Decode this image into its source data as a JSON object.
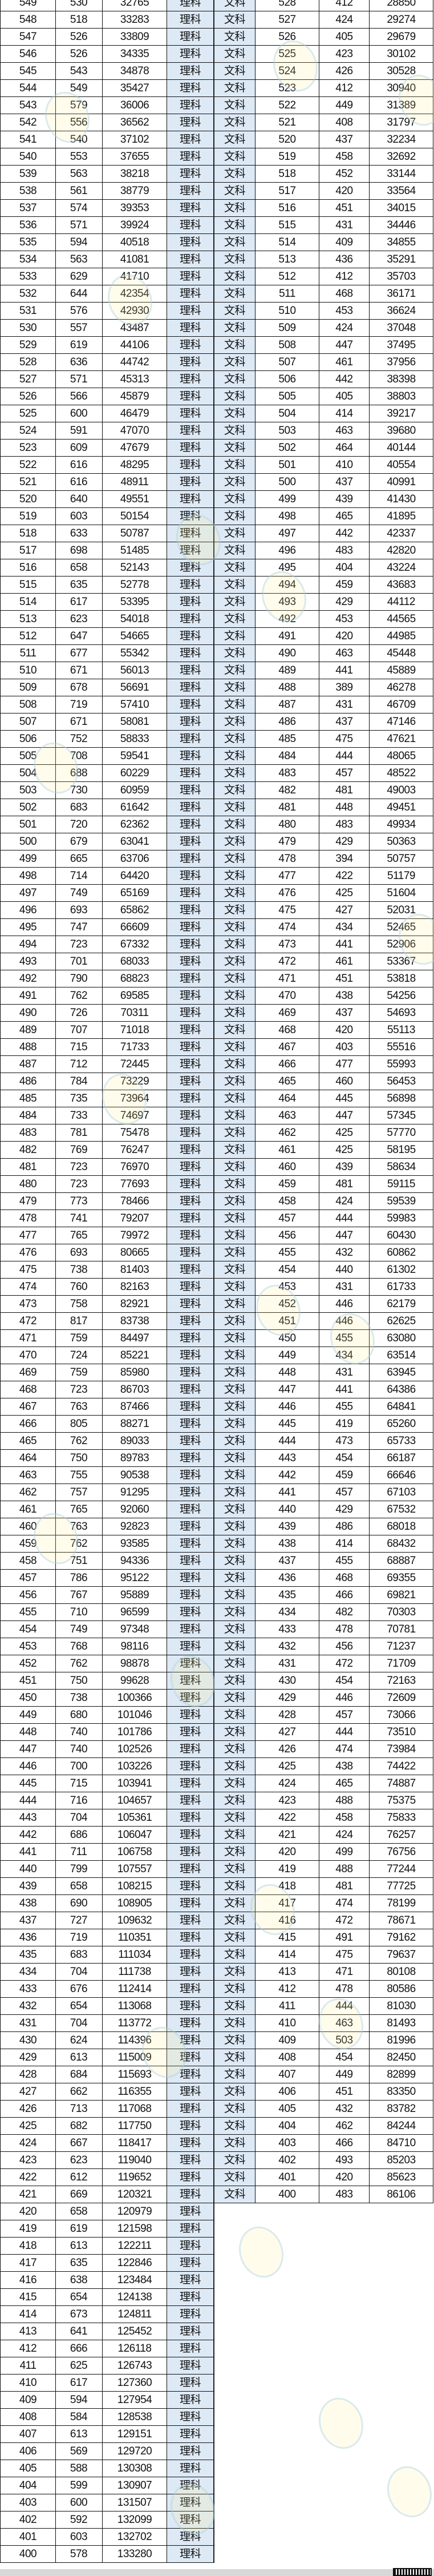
{
  "labels": {
    "science": "理科",
    "liberal_arts": "文科"
  },
  "science_rows": [
    [
      "549",
      "530",
      "32765"
    ],
    [
      "548",
      "518",
      "33283"
    ],
    [
      "547",
      "526",
      "33809"
    ],
    [
      "546",
      "526",
      "34335"
    ],
    [
      "545",
      "543",
      "34878"
    ],
    [
      "544",
      "549",
      "35427"
    ],
    [
      "543",
      "579",
      "36006"
    ],
    [
      "542",
      "556",
      "36562"
    ],
    [
      "541",
      "540",
      "37102"
    ],
    [
      "540",
      "553",
      "37655"
    ],
    [
      "539",
      "563",
      "38218"
    ],
    [
      "538",
      "561",
      "38779"
    ],
    [
      "537",
      "574",
      "39353"
    ],
    [
      "536",
      "571",
      "39924"
    ],
    [
      "535",
      "594",
      "40518"
    ],
    [
      "534",
      "563",
      "41081"
    ],
    [
      "533",
      "629",
      "41710"
    ],
    [
      "532",
      "644",
      "42354"
    ],
    [
      "531",
      "576",
      "42930"
    ],
    [
      "530",
      "557",
      "43487"
    ],
    [
      "529",
      "619",
      "44106"
    ],
    [
      "528",
      "636",
      "44742"
    ],
    [
      "527",
      "571",
      "45313"
    ],
    [
      "526",
      "566",
      "45879"
    ],
    [
      "525",
      "600",
      "46479"
    ],
    [
      "524",
      "591",
      "47070"
    ],
    [
      "523",
      "609",
      "47679"
    ],
    [
      "522",
      "616",
      "48295"
    ],
    [
      "521",
      "616",
      "48911"
    ],
    [
      "520",
      "640",
      "49551"
    ],
    [
      "519",
      "603",
      "50154"
    ],
    [
      "518",
      "633",
      "50787"
    ],
    [
      "517",
      "698",
      "51485"
    ],
    [
      "516",
      "658",
      "52143"
    ],
    [
      "515",
      "635",
      "52778"
    ],
    [
      "514",
      "617",
      "53395"
    ],
    [
      "513",
      "623",
      "54018"
    ],
    [
      "512",
      "647",
      "54665"
    ],
    [
      "511",
      "677",
      "55342"
    ],
    [
      "510",
      "671",
      "56013"
    ],
    [
      "509",
      "678",
      "56691"
    ],
    [
      "508",
      "719",
      "57410"
    ],
    [
      "507",
      "671",
      "58081"
    ],
    [
      "506",
      "752",
      "58833"
    ],
    [
      "505",
      "708",
      "59541"
    ],
    [
      "504",
      "688",
      "60229"
    ],
    [
      "503",
      "730",
      "60959"
    ],
    [
      "502",
      "683",
      "61642"
    ],
    [
      "501",
      "720",
      "62362"
    ],
    [
      "500",
      "679",
      "63041"
    ],
    [
      "499",
      "665",
      "63706"
    ],
    [
      "498",
      "714",
      "64420"
    ],
    [
      "497",
      "749",
      "65169"
    ],
    [
      "496",
      "693",
      "65862"
    ],
    [
      "495",
      "747",
      "66609"
    ],
    [
      "494",
      "723",
      "67332"
    ],
    [
      "493",
      "701",
      "68033"
    ],
    [
      "492",
      "790",
      "68823"
    ],
    [
      "491",
      "762",
      "69585"
    ],
    [
      "490",
      "726",
      "70311"
    ],
    [
      "489",
      "707",
      "71018"
    ],
    [
      "488",
      "715",
      "71733"
    ],
    [
      "487",
      "712",
      "72445"
    ],
    [
      "486",
      "784",
      "73229"
    ],
    [
      "485",
      "735",
      "73964"
    ],
    [
      "484",
      "733",
      "74697"
    ],
    [
      "483",
      "781",
      "75478"
    ],
    [
      "482",
      "769",
      "76247"
    ],
    [
      "481",
      "723",
      "76970"
    ],
    [
      "480",
      "723",
      "77693"
    ],
    [
      "479",
      "773",
      "78466"
    ],
    [
      "478",
      "741",
      "79207"
    ],
    [
      "477",
      "765",
      "79972"
    ],
    [
      "476",
      "693",
      "80665"
    ],
    [
      "475",
      "738",
      "81403"
    ],
    [
      "474",
      "760",
      "82163"
    ],
    [
      "473",
      "758",
      "82921"
    ],
    [
      "472",
      "817",
      "83738"
    ],
    [
      "471",
      "759",
      "84497"
    ],
    [
      "470",
      "724",
      "85221"
    ],
    [
      "469",
      "759",
      "85980"
    ],
    [
      "468",
      "723",
      "86703"
    ],
    [
      "467",
      "763",
      "87466"
    ],
    [
      "466",
      "805",
      "88271"
    ],
    [
      "465",
      "762",
      "89033"
    ],
    [
      "464",
      "750",
      "89783"
    ],
    [
      "463",
      "755",
      "90538"
    ],
    [
      "462",
      "757",
      "91295"
    ],
    [
      "461",
      "765",
      "92060"
    ],
    [
      "460",
      "763",
      "92823"
    ],
    [
      "459",
      "762",
      "93585"
    ],
    [
      "458",
      "751",
      "94336"
    ],
    [
      "457",
      "786",
      "95122"
    ],
    [
      "456",
      "767",
      "95889"
    ],
    [
      "455",
      "710",
      "96599"
    ],
    [
      "454",
      "749",
      "97348"
    ],
    [
      "453",
      "768",
      "98116"
    ],
    [
      "452",
      "762",
      "98878"
    ],
    [
      "451",
      "750",
      "99628"
    ],
    [
      "450",
      "738",
      "100366"
    ],
    [
      "449",
      "680",
      "101046"
    ],
    [
      "448",
      "740",
      "101786"
    ],
    [
      "447",
      "740",
      "102526"
    ],
    [
      "446",
      "700",
      "103226"
    ],
    [
      "445",
      "715",
      "103941"
    ],
    [
      "444",
      "716",
      "104657"
    ],
    [
      "443",
      "704",
      "105361"
    ],
    [
      "442",
      "686",
      "106047"
    ],
    [
      "441",
      "711",
      "106758"
    ],
    [
      "440",
      "799",
      "107557"
    ],
    [
      "439",
      "658",
      "108215"
    ],
    [
      "438",
      "690",
      "108905"
    ],
    [
      "437",
      "727",
      "109632"
    ],
    [
      "436",
      "719",
      "110351"
    ],
    [
      "435",
      "683",
      "111034"
    ],
    [
      "434",
      "704",
      "111738"
    ],
    [
      "433",
      "676",
      "112414"
    ],
    [
      "432",
      "654",
      "113068"
    ],
    [
      "431",
      "704",
      "113772"
    ],
    [
      "430",
      "624",
      "114396"
    ],
    [
      "429",
      "613",
      "115009"
    ],
    [
      "428",
      "684",
      "115693"
    ],
    [
      "427",
      "662",
      "116355"
    ],
    [
      "426",
      "713",
      "117068"
    ],
    [
      "425",
      "682",
      "117750"
    ],
    [
      "424",
      "667",
      "118417"
    ],
    [
      "423",
      "623",
      "119040"
    ],
    [
      "422",
      "612",
      "119652"
    ],
    [
      "421",
      "669",
      "120321"
    ],
    [
      "420",
      "658",
      "120979"
    ],
    [
      "419",
      "619",
      "121598"
    ],
    [
      "418",
      "613",
      "122211"
    ],
    [
      "417",
      "635",
      "122846"
    ],
    [
      "416",
      "638",
      "123484"
    ],
    [
      "415",
      "654",
      "124138"
    ],
    [
      "414",
      "673",
      "124811"
    ],
    [
      "413",
      "641",
      "125452"
    ],
    [
      "412",
      "666",
      "126118"
    ],
    [
      "411",
      "625",
      "126743"
    ],
    [
      "410",
      "617",
      "127360"
    ],
    [
      "409",
      "594",
      "127954"
    ],
    [
      "408",
      "584",
      "128538"
    ],
    [
      "407",
      "613",
      "129151"
    ],
    [
      "406",
      "569",
      "129720"
    ],
    [
      "405",
      "588",
      "130308"
    ],
    [
      "404",
      "599",
      "130907"
    ],
    [
      "403",
      "600",
      "131507"
    ],
    [
      "402",
      "592",
      "132099"
    ],
    [
      "401",
      "603",
      "132702"
    ],
    [
      "400",
      "578",
      "133280"
    ]
  ],
  "liberal_arts_rows": [
    [
      "528",
      "412",
      "28850"
    ],
    [
      "527",
      "424",
      "29274"
    ],
    [
      "526",
      "405",
      "29679"
    ],
    [
      "525",
      "423",
      "30102"
    ],
    [
      "524",
      "426",
      "30528"
    ],
    [
      "523",
      "412",
      "30940"
    ],
    [
      "522",
      "449",
      "31389"
    ],
    [
      "521",
      "408",
      "31797"
    ],
    [
      "520",
      "437",
      "32234"
    ],
    [
      "519",
      "458",
      "32692"
    ],
    [
      "518",
      "452",
      "33144"
    ],
    [
      "517",
      "420",
      "33564"
    ],
    [
      "516",
      "451",
      "34015"
    ],
    [
      "515",
      "431",
      "34446"
    ],
    [
      "514",
      "409",
      "34855"
    ],
    [
      "513",
      "436",
      "35291"
    ],
    [
      "512",
      "412",
      "35703"
    ],
    [
      "511",
      "468",
      "36171"
    ],
    [
      "510",
      "453",
      "36624"
    ],
    [
      "509",
      "424",
      "37048"
    ],
    [
      "508",
      "447",
      "37495"
    ],
    [
      "507",
      "461",
      "37956"
    ],
    [
      "506",
      "442",
      "38398"
    ],
    [
      "505",
      "405",
      "38803"
    ],
    [
      "504",
      "414",
      "39217"
    ],
    [
      "503",
      "463",
      "39680"
    ],
    [
      "502",
      "464",
      "40144"
    ],
    [
      "501",
      "410",
      "40554"
    ],
    [
      "500",
      "437",
      "40991"
    ],
    [
      "499",
      "439",
      "41430"
    ],
    [
      "498",
      "465",
      "41895"
    ],
    [
      "497",
      "442",
      "42337"
    ],
    [
      "496",
      "483",
      "42820"
    ],
    [
      "495",
      "404",
      "43224"
    ],
    [
      "494",
      "459",
      "43683"
    ],
    [
      "493",
      "429",
      "44112"
    ],
    [
      "492",
      "453",
      "44565"
    ],
    [
      "491",
      "420",
      "44985"
    ],
    [
      "490",
      "463",
      "45448"
    ],
    [
      "489",
      "441",
      "45889"
    ],
    [
      "488",
      "389",
      "46278"
    ],
    [
      "487",
      "431",
      "46709"
    ],
    [
      "486",
      "437",
      "47146"
    ],
    [
      "485",
      "475",
      "47621"
    ],
    [
      "484",
      "444",
      "48065"
    ],
    [
      "483",
      "457",
      "48522"
    ],
    [
      "482",
      "481",
      "49003"
    ],
    [
      "481",
      "448",
      "49451"
    ],
    [
      "480",
      "483",
      "49934"
    ],
    [
      "479",
      "429",
      "50363"
    ],
    [
      "478",
      "394",
      "50757"
    ],
    [
      "477",
      "422",
      "51179"
    ],
    [
      "476",
      "425",
      "51604"
    ],
    [
      "475",
      "427",
      "52031"
    ],
    [
      "474",
      "434",
      "52465"
    ],
    [
      "473",
      "441",
      "52906"
    ],
    [
      "472",
      "461",
      "53367"
    ],
    [
      "471",
      "451",
      "53818"
    ],
    [
      "470",
      "438",
      "54256"
    ],
    [
      "469",
      "437",
      "54693"
    ],
    [
      "468",
      "420",
      "55113"
    ],
    [
      "467",
      "403",
      "55516"
    ],
    [
      "466",
      "477",
      "55993"
    ],
    [
      "465",
      "460",
      "56453"
    ],
    [
      "464",
      "445",
      "56898"
    ],
    [
      "463",
      "447",
      "57345"
    ],
    [
      "462",
      "425",
      "57770"
    ],
    [
      "461",
      "425",
      "58195"
    ],
    [
      "460",
      "439",
      "58634"
    ],
    [
      "459",
      "481",
      "59115"
    ],
    [
      "458",
      "424",
      "59539"
    ],
    [
      "457",
      "444",
      "59983"
    ],
    [
      "456",
      "447",
      "60430"
    ],
    [
      "455",
      "432",
      "60862"
    ],
    [
      "454",
      "440",
      "61302"
    ],
    [
      "453",
      "431",
      "61733"
    ],
    [
      "452",
      "446",
      "62179"
    ],
    [
      "451",
      "446",
      "62625"
    ],
    [
      "450",
      "455",
      "63080"
    ],
    [
      "449",
      "434",
      "63514"
    ],
    [
      "448",
      "431",
      "63945"
    ],
    [
      "447",
      "441",
      "64386"
    ],
    [
      "446",
      "455",
      "64841"
    ],
    [
      "445",
      "419",
      "65260"
    ],
    [
      "444",
      "473",
      "65733"
    ],
    [
      "443",
      "454",
      "66187"
    ],
    [
      "442",
      "459",
      "66646"
    ],
    [
      "441",
      "457",
      "67103"
    ],
    [
      "440",
      "429",
      "67532"
    ],
    [
      "439",
      "486",
      "68018"
    ],
    [
      "438",
      "414",
      "68432"
    ],
    [
      "437",
      "455",
      "68887"
    ],
    [
      "436",
      "468",
      "69355"
    ],
    [
      "435",
      "466",
      "69821"
    ],
    [
      "434",
      "482",
      "70303"
    ],
    [
      "433",
      "478",
      "70781"
    ],
    [
      "432",
      "456",
      "71237"
    ],
    [
      "431",
      "472",
      "71709"
    ],
    [
      "430",
      "454",
      "72163"
    ],
    [
      "429",
      "446",
      "72609"
    ],
    [
      "428",
      "457",
      "73066"
    ],
    [
      "427",
      "444",
      "73510"
    ],
    [
      "426",
      "474",
      "73984"
    ],
    [
      "425",
      "438",
      "74422"
    ],
    [
      "424",
      "465",
      "74887"
    ],
    [
      "423",
      "488",
      "75375"
    ],
    [
      "422",
      "458",
      "75833"
    ],
    [
      "421",
      "424",
      "76257"
    ],
    [
      "420",
      "499",
      "76756"
    ],
    [
      "419",
      "488",
      "77244"
    ],
    [
      "418",
      "481",
      "77725"
    ],
    [
      "417",
      "474",
      "78199"
    ],
    [
      "416",
      "472",
      "78671"
    ],
    [
      "415",
      "491",
      "79162"
    ],
    [
      "414",
      "475",
      "79637"
    ],
    [
      "413",
      "471",
      "80108"
    ],
    [
      "412",
      "478",
      "80586"
    ],
    [
      "411",
      "444",
      "81030"
    ],
    [
      "410",
      "463",
      "81493"
    ],
    [
      "409",
      "503",
      "81996"
    ],
    [
      "408",
      "454",
      "82450"
    ],
    [
      "407",
      "449",
      "82899"
    ],
    [
      "406",
      "451",
      "83350"
    ],
    [
      "405",
      "432",
      "83782"
    ],
    [
      "404",
      "462",
      "84244"
    ],
    [
      "403",
      "466",
      "84710"
    ],
    [
      "402",
      "493",
      "85203"
    ],
    [
      "401",
      "420",
      "85623"
    ],
    [
      "400",
      "483",
      "86106"
    ]
  ],
  "colors": {
    "subject_column_bg": "#dde9f5",
    "grid": "#111111"
  }
}
